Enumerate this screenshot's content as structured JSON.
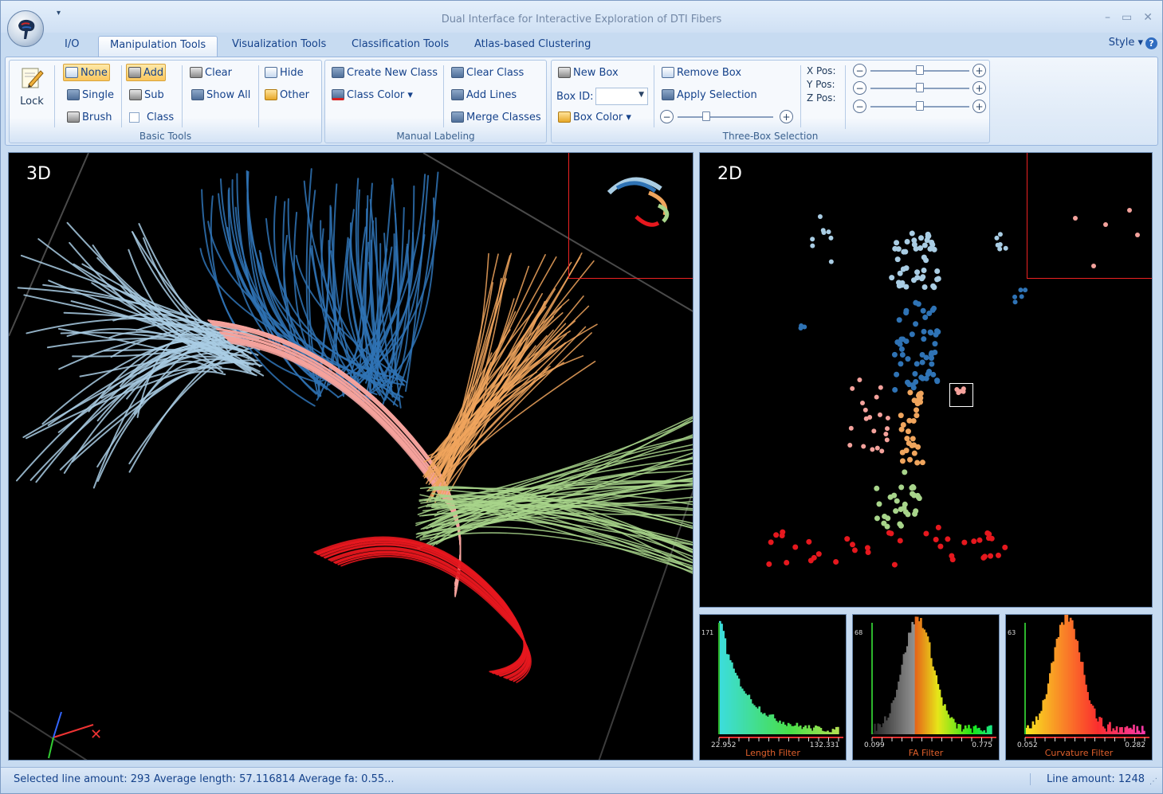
{
  "window": {
    "title": "Dual Interface for Interactive Exploration of DTI Fibers",
    "quick_access": "▾",
    "controls": [
      "–",
      "▭",
      "✕"
    ]
  },
  "tabs": [
    {
      "label": "I/O",
      "active": false
    },
    {
      "label": "Manipulation Tools",
      "active": true
    },
    {
      "label": "Visualization Tools",
      "active": false
    },
    {
      "label": "Classification Tools",
      "active": false
    },
    {
      "label": "Atlas-based Clustering",
      "active": false
    }
  ],
  "style_menu": "Style  ▾",
  "help": "?",
  "ribbon": {
    "basic_tools": {
      "label": "Basic Tools",
      "lock": "Lock",
      "none": "None",
      "single": "Single",
      "brush": "Brush",
      "add": "Add",
      "sub": "Sub",
      "class": "Class",
      "clear": "Clear",
      "show_all": "Show All",
      "hide": "Hide",
      "other": "Other"
    },
    "manual_labeling": {
      "label": "Manual Labeling",
      "create_new_class": "Create New Class",
      "class_color": "Class Color  ▾",
      "clear_class": "Clear Class",
      "add_lines": "Add Lines",
      "merge_classes": "Merge Classes"
    },
    "three_box": {
      "label": "Three-Box Selection",
      "new_box": "New Box",
      "box_id": "Box ID:",
      "box_color": "Box Color  ▾",
      "remove_box": "Remove Box",
      "apply_selection": "Apply Selection",
      "size_slider": 0.28,
      "x_pos": "X Pos:",
      "y_pos": "Y Pos:",
      "z_pos": "Z Pos:",
      "x_slider": 0.5,
      "y_slider": 0.5,
      "z_slider": 0.5
    }
  },
  "views": {
    "left_label": "3D",
    "right_label": "2D"
  },
  "histograms": [
    {
      "title": "Length Filter",
      "min": "22.952",
      "max": "132.331",
      "top": "171"
    },
    {
      "title": "FA Filter",
      "min": "0.099",
      "max": "0.775",
      "top": "68"
    },
    {
      "title": "Curvature Filter",
      "min": "0.052",
      "max": "0.282",
      "top": "63"
    }
  ],
  "status": {
    "text": "Selected line amount: 293 Average length: 57.116814 Average fa: 0.55...",
    "line_amount": "Line amount: 1248"
  },
  "colors": {
    "dark_blue": "#2f73b5",
    "light_blue": "#a9cde4",
    "pink": "#f4a29c",
    "orange": "#f0a55d",
    "green": "#a8d58b",
    "red": "#e6181e"
  }
}
